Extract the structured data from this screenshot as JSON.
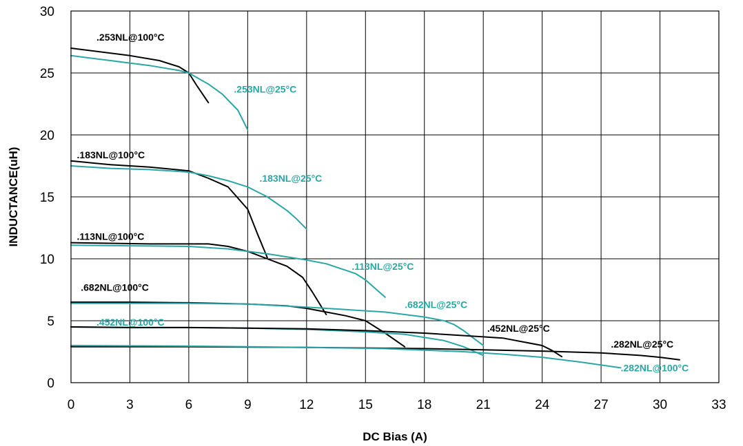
{
  "chart_data": {
    "type": "line",
    "title": "",
    "xlabel": "DC Bias (A)",
    "ylabel": "INDUCTANCE(uH)",
    "xlim": [
      0,
      33
    ],
    "ylim": [
      0,
      30
    ],
    "xticks": [
      0,
      3,
      6,
      9,
      12,
      15,
      18,
      21,
      24,
      27,
      30,
      33
    ],
    "yticks": [
      0,
      5,
      10,
      15,
      20,
      25,
      30
    ],
    "grid": true,
    "legend": "none",
    "colors": {
      "hot": "#000000",
      "cold": "#2aa6a6"
    },
    "series": [
      {
        "name": ".253NL@100°C",
        "color": "#000000",
        "x": [
          0,
          3,
          4.5,
          5.5,
          6,
          6.4,
          7
        ],
        "y": [
          27,
          26.4,
          26,
          25.5,
          25,
          24,
          22.6
        ]
      },
      {
        "name": ".253NL@25°C",
        "color": "#2aa6a6",
        "x": [
          0,
          2,
          4,
          5.5,
          6,
          7,
          7.7,
          8.5,
          9
        ],
        "y": [
          26.4,
          26,
          25.6,
          25.2,
          25,
          24.1,
          23.3,
          22,
          20.4
        ]
      },
      {
        "name": ".183NL@100°C",
        "color": "#000000",
        "x": [
          0,
          2,
          4,
          6,
          7,
          8,
          9,
          9.5,
          10
        ],
        "y": [
          17.9,
          17.6,
          17.4,
          17.1,
          16.5,
          15.8,
          14,
          12,
          10.1
        ]
      },
      {
        "name": ".183NL@25°C",
        "color": "#2aa6a6",
        "x": [
          0,
          2,
          4,
          6,
          7,
          8,
          9,
          10,
          11,
          11.5,
          12
        ],
        "y": [
          17.5,
          17.3,
          17.2,
          17,
          16.7,
          16.3,
          15.8,
          15,
          13.9,
          13.2,
          12.4
        ]
      },
      {
        "name": ".113NL@100°C",
        "color": "#000000",
        "x": [
          0,
          4,
          7,
          8,
          9,
          10,
          11,
          11.8,
          12.3,
          13
        ],
        "y": [
          11.3,
          11.2,
          11.2,
          11,
          10.6,
          10,
          9.4,
          8.5,
          7.3,
          5.5
        ]
      },
      {
        "name": ".113NL@25°C",
        "color": "#2aa6a6",
        "x": [
          0,
          3,
          6,
          8,
          10,
          12,
          13,
          14.5,
          15,
          15.5,
          16
        ],
        "y": [
          11.1,
          11.05,
          11,
          10.8,
          10.4,
          9.9,
          9.6,
          8.8,
          8.3,
          7.6,
          6.9
        ]
      },
      {
        "name": ".682NL@100°C",
        "color": "#000000",
        "x": [
          0,
          3,
          6,
          9,
          11,
          12,
          13,
          14,
          15,
          16,
          17
        ],
        "y": [
          6.5,
          6.5,
          6.45,
          6.35,
          6.2,
          6,
          5.7,
          5.4,
          5,
          4,
          2.9
        ]
      },
      {
        "name": ".682NL@25°C",
        "color": "#2aa6a6",
        "x": [
          0,
          3,
          6,
          9,
          12,
          14,
          16,
          18,
          19,
          19.5,
          20,
          20.5,
          21
        ],
        "y": [
          6.4,
          6.4,
          6.4,
          6.35,
          6.1,
          5.9,
          5.7,
          5.3,
          5,
          4.7,
          4.2,
          3.6,
          3.0
        ]
      },
      {
        "name": ".452NL@100°C",
        "color": "#2aa6a6",
        "x": [
          0,
          3,
          6,
          9,
          12,
          15,
          17,
          19,
          20,
          21
        ],
        "y": [
          4.5,
          4.45,
          4.45,
          4.4,
          4.3,
          4.1,
          3.9,
          3.4,
          2.9,
          2.2
        ]
      },
      {
        "name": ".452NL@25°C",
        "color": "#000000",
        "x": [
          0,
          3,
          6,
          9,
          12,
          15,
          18,
          21,
          22,
          23,
          24,
          24.5,
          25
        ],
        "y": [
          4.5,
          4.45,
          4.45,
          4.4,
          4.35,
          4.2,
          4.0,
          3.7,
          3.6,
          3.3,
          3.0,
          2.6,
          2.1
        ]
      },
      {
        "name": ".282NL@25°C",
        "color": "#000000",
        "x": [
          0,
          6,
          12,
          18,
          21,
          24,
          27,
          29,
          30,
          31
        ],
        "y": [
          2.9,
          2.9,
          2.85,
          2.75,
          2.65,
          2.55,
          2.4,
          2.2,
          2.05,
          1.85
        ]
      },
      {
        "name": ".282NL@100°C",
        "color": "#2aa6a6",
        "x": [
          0,
          6,
          12,
          16,
          20,
          22,
          24,
          26,
          28
        ],
        "y": [
          3.0,
          2.95,
          2.85,
          2.75,
          2.5,
          2.3,
          2.05,
          1.65,
          1.2
        ]
      }
    ],
    "annotations": [
      {
        "text": ".253NL@100°C",
        "x": 1.3,
        "y": 27.9,
        "color": "#000000"
      },
      {
        "text": ".253NL@25°C",
        "x": 8.3,
        "y": 23.7,
        "color": "#2aa6a6"
      },
      {
        "text": ".183NL@100°C",
        "x": 0.3,
        "y": 18.4,
        "color": "#000000"
      },
      {
        "text": ".183NL@25°C",
        "x": 9.6,
        "y": 16.5,
        "color": "#2aa6a6"
      },
      {
        "text": ".113NL@100°C",
        "x": 0.3,
        "y": 11.8,
        "color": "#000000"
      },
      {
        "text": ".113NL@25°C",
        "x": 14.3,
        "y": 9.4,
        "color": "#2aa6a6"
      },
      {
        "text": ".682NL@100°C",
        "x": 0.5,
        "y": 7.7,
        "color": "#000000"
      },
      {
        "text": ".682NL@25°C",
        "x": 17.0,
        "y": 6.3,
        "color": "#2aa6a6"
      },
      {
        "text": ".452NL@100°C",
        "x": 1.3,
        "y": 4.9,
        "color": "#2aa6a6"
      },
      {
        "text": ".452NL@25°C",
        "x": 21.2,
        "y": 4.4,
        "color": "#000000"
      },
      {
        "text": ".282NL@25°C",
        "x": 27.5,
        "y": 3.1,
        "color": "#000000"
      },
      {
        "text": ".282NL@100°C",
        "x": 28.0,
        "y": 1.2,
        "color": "#2aa6a6"
      }
    ]
  }
}
